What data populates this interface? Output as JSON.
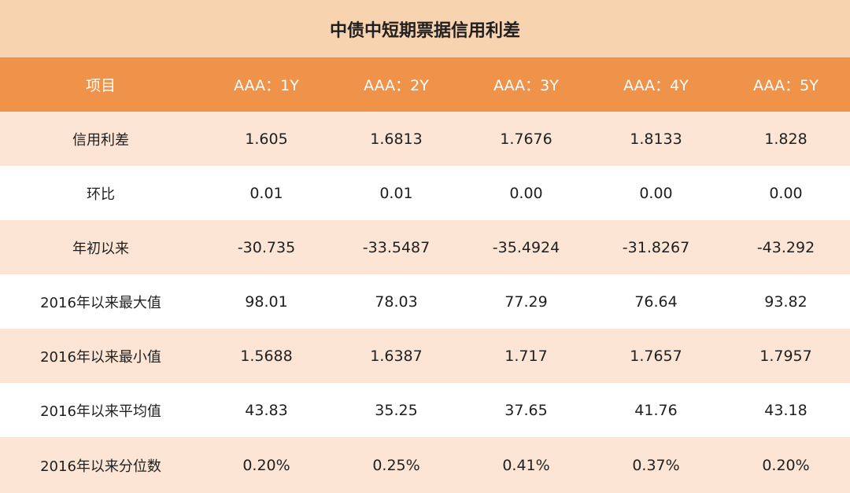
{
  "title": "中债中短期票据信用利差",
  "colors": {
    "title_bg": "#f8d3b0",
    "header_bg": "#ef934a",
    "row_odd_bg": "#fce5d4",
    "row_even_bg": "#ffffff"
  },
  "table": {
    "headers": [
      "项目",
      "AAA：1Y",
      "AAA：2Y",
      "AAA：3Y",
      "AAA：4Y",
      "AAA：5Y"
    ],
    "rows": [
      {
        "label": "信用利差",
        "values": [
          "1.605",
          "1.6813",
          "1.7676",
          "1.8133",
          "1.828"
        ]
      },
      {
        "label": "环比",
        "values": [
          "0.01",
          "0.01",
          "0.00",
          "0.00",
          "0.00"
        ]
      },
      {
        "label": "年初以来",
        "values": [
          "-30.735",
          "-33.5487",
          "-35.4924",
          "-31.8267",
          "-43.292"
        ]
      },
      {
        "label": "2016年以来最大值",
        "values": [
          "98.01",
          "78.03",
          "77.29",
          "76.64",
          "93.82"
        ]
      },
      {
        "label": "2016年以来最小值",
        "values": [
          "1.5688",
          "1.6387",
          "1.717",
          "1.7657",
          "1.7957"
        ]
      },
      {
        "label": "2016年以来平均值",
        "values": [
          "43.83",
          "35.25",
          "37.65",
          "41.76",
          "43.18"
        ]
      },
      {
        "label": "2016年以来分位数",
        "values": [
          "0.20%",
          "0.25%",
          "0.41%",
          "0.37%",
          "0.20%"
        ]
      }
    ]
  }
}
